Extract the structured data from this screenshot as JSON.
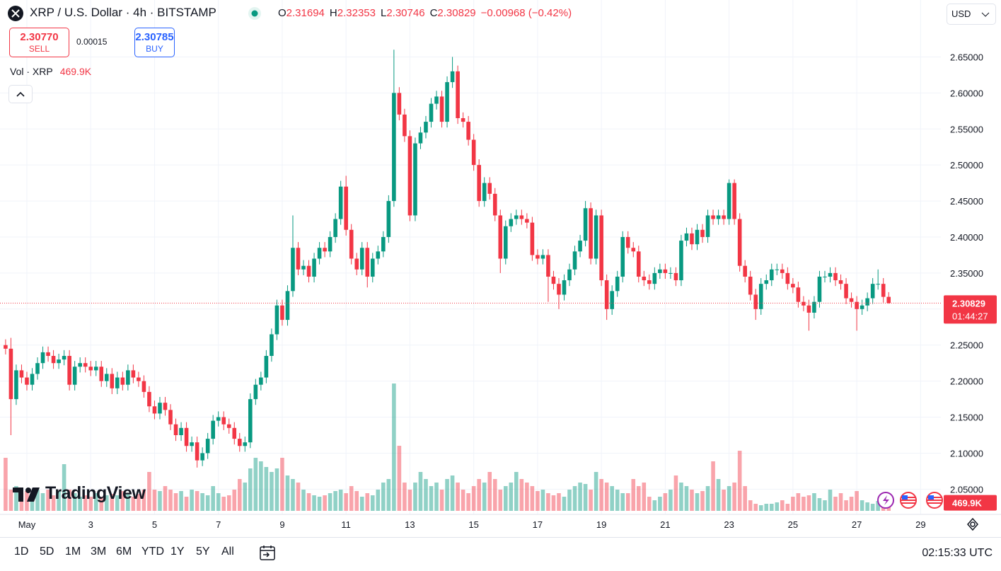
{
  "header": {
    "symbol": "XRP / U.S. Dollar · 4h · BITSTAMP",
    "o_label": "O",
    "h_label": "H",
    "l_label": "L",
    "c_label": "C",
    "change": "−0.00968 (−0.42%)",
    "sell_price": "2.30770",
    "sell_label": "SELL",
    "spread": "0.00015",
    "buy_price": "2.30785",
    "buy_label": "BUY",
    "currency": "USD",
    "countdown": "01:44:27"
  },
  "branding": "TradingView",
  "footer": {
    "ranges": [
      "1D",
      "5D",
      "1M",
      "3M",
      "6M",
      "YTD",
      "1Y",
      "5Y",
      "All"
    ],
    "clock": "02:15:33 UTC"
  },
  "chart_data": {
    "type": "candlestick",
    "up_color": "#089981",
    "down_color": "#f23645",
    "grid": true,
    "ylim": [
      2.015,
      2.729
    ],
    "yticks": [
      {
        "value": 2.05,
        "label": "2.05000"
      },
      {
        "value": 2.1,
        "label": "2.10000"
      },
      {
        "value": 2.15,
        "label": "2.15000"
      },
      {
        "value": 2.2,
        "label": "2.20000"
      },
      {
        "value": 2.25,
        "label": "2.25000"
      },
      {
        "value": 2.3,
        "label": "2.30000"
      },
      {
        "value": 2.35,
        "label": "2.35000"
      },
      {
        "value": 2.4,
        "label": "2.40000"
      },
      {
        "value": 2.45,
        "label": "2.45000"
      },
      {
        "value": 2.5,
        "label": "2.50000"
      },
      {
        "value": 2.55,
        "label": "2.55000"
      },
      {
        "value": 2.6,
        "label": "2.60000"
      },
      {
        "value": 2.65,
        "label": "2.65000"
      }
    ],
    "categories": [
      null,
      null,
      null,
      null,
      "May",
      null,
      null,
      null,
      null,
      null,
      null,
      null,
      null,
      null,
      null,
      null,
      "3",
      null,
      null,
      null,
      null,
      null,
      null,
      null,
      null,
      null,
      null,
      null,
      "5",
      null,
      null,
      null,
      null,
      null,
      null,
      null,
      null,
      null,
      null,
      null,
      "7",
      null,
      null,
      null,
      null,
      null,
      null,
      null,
      null,
      null,
      null,
      null,
      "9",
      null,
      null,
      null,
      null,
      null,
      null,
      null,
      null,
      null,
      null,
      null,
      "11",
      null,
      null,
      null,
      null,
      null,
      null,
      null,
      null,
      null,
      null,
      null,
      "13",
      null,
      null,
      null,
      null,
      null,
      null,
      null,
      null,
      null,
      null,
      null,
      "15",
      null,
      null,
      null,
      null,
      null,
      null,
      null,
      null,
      null,
      null,
      null,
      "17",
      null,
      null,
      null,
      null,
      null,
      null,
      null,
      null,
      null,
      null,
      null,
      "19",
      null,
      null,
      null,
      null,
      null,
      null,
      null,
      null,
      null,
      null,
      null,
      "21",
      null,
      null,
      null,
      null,
      null,
      null,
      null,
      null,
      null,
      null,
      null,
      "23",
      null,
      null,
      null,
      null,
      null,
      null,
      null,
      null,
      null,
      null,
      null,
      "25",
      null,
      null,
      null,
      null,
      null,
      null,
      null,
      null,
      null,
      null,
      null,
      "27",
      null,
      null,
      null,
      null,
      null,
      null,
      null,
      null,
      null,
      null,
      null,
      "29",
      null,
      null,
      null
    ],
    "open": [
      2.25,
      2.245,
      2.175,
      2.215,
      2.205,
      2.195,
      2.21,
      2.225,
      2.24,
      2.235,
      2.225,
      2.23,
      2.235,
      2.195,
      2.22,
      2.225,
      2.22,
      2.215,
      2.22,
      2.2,
      2.21,
      2.19,
      2.205,
      2.195,
      2.215,
      2.205,
      2.2,
      2.185,
      2.165,
      2.155,
      2.17,
      2.16,
      2.14,
      2.125,
      2.135,
      2.11,
      2.115,
      2.09,
      2.1,
      2.12,
      2.145,
      2.15,
      2.14,
      2.135,
      2.12,
      2.11,
      2.115,
      2.175,
      2.195,
      2.205,
      2.235,
      2.265,
      2.305,
      2.285,
      2.325,
      2.385,
      2.355,
      2.36,
      2.345,
      2.37,
      2.385,
      2.38,
      2.4,
      2.425,
      2.47,
      2.41,
      2.37,
      2.355,
      2.385,
      2.345,
      2.37,
      2.38,
      2.4,
      2.45,
      2.6,
      2.57,
      2.54,
      2.43,
      2.53,
      2.545,
      2.56,
      2.585,
      2.595,
      2.56,
      2.615,
      2.63,
      2.565,
      2.56,
      2.535,
      2.5,
      2.45,
      2.475,
      2.46,
      2.43,
      2.37,
      2.415,
      2.425,
      2.43,
      2.425,
      2.42,
      2.375,
      2.37,
      2.375,
      2.345,
      2.335,
      2.32,
      2.34,
      2.355,
      2.38,
      2.395,
      2.44,
      2.37,
      2.43,
      2.34,
      2.3,
      2.325,
      2.345,
      2.4,
      2.385,
      2.38,
      2.345,
      2.34,
      2.335,
      2.35,
      2.355,
      2.35,
      2.35,
      2.34,
      2.395,
      2.405,
      2.39,
      2.41,
      2.4,
      2.43,
      2.425,
      2.43,
      2.425,
      2.475,
      2.425,
      2.36,
      2.345,
      2.32,
      2.3,
      2.335,
      2.34,
      2.355,
      2.355,
      2.35,
      2.335,
      2.33,
      2.31,
      2.305,
      2.295,
      2.31,
      2.345,
      2.345,
      2.35,
      2.34,
      2.335,
      2.315,
      2.31,
      2.3,
      2.305,
      2.315,
      2.335,
      2.335,
      2.31694,
      null,
      null,
      null,
      null,
      null,
      null,
      null,
      null,
      null
    ],
    "high": [
      2.258,
      2.26,
      2.223,
      2.223,
      2.213,
      2.218,
      2.233,
      2.248,
      2.248,
      2.243,
      2.238,
      2.243,
      2.243,
      2.228,
      2.233,
      2.233,
      2.228,
      2.228,
      2.228,
      2.218,
      2.218,
      2.213,
      2.213,
      2.223,
      2.223,
      2.213,
      2.208,
      2.193,
      2.173,
      2.178,
      2.178,
      2.168,
      2.148,
      2.143,
      2.143,
      2.123,
      2.123,
      2.108,
      2.128,
      2.153,
      2.158,
      2.158,
      2.148,
      2.143,
      2.128,
      2.123,
      2.183,
      2.203,
      2.213,
      2.243,
      2.273,
      2.313,
      2.313,
      2.333,
      2.43,
      2.393,
      2.368,
      2.368,
      2.378,
      2.393,
      2.393,
      2.408,
      2.433,
      2.478,
      2.485,
      2.418,
      2.378,
      2.393,
      2.393,
      2.378,
      2.388,
      2.408,
      2.458,
      2.66,
      2.608,
      2.578,
      2.548,
      2.538,
      2.553,
      2.568,
      2.593,
      2.603,
      2.603,
      2.623,
      2.65,
      2.638,
      2.573,
      2.568,
      2.543,
      2.508,
      2.483,
      2.483,
      2.468,
      2.438,
      2.423,
      2.433,
      2.438,
      2.438,
      2.433,
      2.428,
      2.383,
      2.383,
      2.383,
      2.353,
      2.343,
      2.348,
      2.363,
      2.388,
      2.403,
      2.45,
      2.448,
      2.438,
      2.438,
      2.348,
      2.333,
      2.353,
      2.408,
      2.408,
      2.393,
      2.388,
      2.353,
      2.348,
      2.358,
      2.363,
      2.363,
      2.358,
      2.358,
      2.403,
      2.413,
      2.413,
      2.418,
      2.418,
      2.438,
      2.438,
      2.438,
      2.438,
      2.48,
      2.48,
      2.433,
      2.368,
      2.353,
      2.328,
      2.343,
      2.348,
      2.363,
      2.363,
      2.363,
      2.358,
      2.343,
      2.338,
      2.318,
      2.313,
      2.318,
      2.353,
      2.353,
      2.358,
      2.358,
      2.348,
      2.343,
      2.323,
      2.318,
      2.313,
      2.323,
      2.343,
      2.355,
      2.343,
      2.32353,
      null,
      null,
      null,
      null,
      null,
      null,
      null,
      null,
      null
    ],
    "low": [
      2.237,
      2.125,
      2.167,
      2.197,
      2.187,
      2.187,
      2.202,
      2.217,
      2.227,
      2.217,
      2.217,
      2.222,
      2.187,
      2.187,
      2.212,
      2.212,
      2.207,
      2.207,
      2.192,
      2.192,
      2.182,
      2.182,
      2.187,
      2.187,
      2.197,
      2.192,
      2.177,
      2.157,
      2.147,
      2.147,
      2.152,
      2.132,
      2.117,
      2.117,
      2.102,
      2.102,
      2.08,
      2.082,
      2.092,
      2.112,
      2.137,
      2.132,
      2.127,
      2.112,
      2.102,
      2.102,
      2.107,
      2.167,
      2.187,
      2.197,
      2.227,
      2.257,
      2.277,
      2.277,
      2.317,
      2.347,
      2.347,
      2.337,
      2.337,
      2.362,
      2.372,
      2.372,
      2.392,
      2.417,
      2.402,
      2.362,
      2.347,
      2.347,
      2.33,
      2.337,
      2.362,
      2.372,
      2.392,
      2.442,
      2.562,
      2.532,
      2.422,
      2.422,
      2.522,
      2.537,
      2.552,
      2.577,
      2.552,
      2.552,
      2.607,
      2.557,
      2.552,
      2.527,
      2.492,
      2.442,
      2.442,
      2.452,
      2.422,
      2.35,
      2.362,
      2.407,
      2.417,
      2.417,
      2.412,
      2.367,
      2.362,
      2.362,
      2.31,
      2.327,
      2.3,
      2.312,
      2.332,
      2.347,
      2.372,
      2.387,
      2.362,
      2.362,
      2.332,
      2.285,
      2.292,
      2.317,
      2.337,
      2.377,
      2.372,
      2.337,
      2.332,
      2.327,
      2.327,
      2.342,
      2.342,
      2.342,
      2.332,
      2.332,
      2.387,
      2.382,
      2.382,
      2.392,
      2.392,
      2.417,
      2.417,
      2.417,
      2.417,
      2.417,
      2.352,
      2.337,
      2.312,
      2.285,
      2.292,
      2.327,
      2.332,
      2.347,
      2.342,
      2.327,
      2.322,
      2.302,
      2.297,
      2.27,
      2.287,
      2.302,
      2.337,
      2.337,
      2.332,
      2.327,
      2.307,
      2.302,
      2.27,
      2.292,
      2.297,
      2.307,
      2.327,
      2.309,
      2.30746,
      null,
      null,
      null,
      null,
      null,
      null,
      null,
      null,
      null
    ],
    "close": [
      2.245,
      2.175,
      2.215,
      2.205,
      2.195,
      2.21,
      2.225,
      2.24,
      2.235,
      2.225,
      2.23,
      2.235,
      2.195,
      2.22,
      2.225,
      2.22,
      2.215,
      2.22,
      2.2,
      2.21,
      2.19,
      2.205,
      2.195,
      2.215,
      2.205,
      2.2,
      2.185,
      2.165,
      2.155,
      2.17,
      2.16,
      2.14,
      2.125,
      2.135,
      2.11,
      2.115,
      2.09,
      2.1,
      2.12,
      2.145,
      2.15,
      2.14,
      2.135,
      2.12,
      2.11,
      2.115,
      2.175,
      2.195,
      2.205,
      2.235,
      2.265,
      2.305,
      2.285,
      2.325,
      2.385,
      2.355,
      2.36,
      2.345,
      2.37,
      2.385,
      2.38,
      2.4,
      2.425,
      2.47,
      2.41,
      2.37,
      2.355,
      2.385,
      2.345,
      2.37,
      2.38,
      2.4,
      2.45,
      2.6,
      2.57,
      2.54,
      2.43,
      2.53,
      2.545,
      2.56,
      2.585,
      2.595,
      2.56,
      2.615,
      2.63,
      2.565,
      2.56,
      2.535,
      2.5,
      2.45,
      2.475,
      2.46,
      2.43,
      2.37,
      2.415,
      2.425,
      2.43,
      2.425,
      2.42,
      2.375,
      2.37,
      2.375,
      2.345,
      2.335,
      2.32,
      2.34,
      2.355,
      2.38,
      2.395,
      2.44,
      2.37,
      2.43,
      2.34,
      2.3,
      2.325,
      2.345,
      2.4,
      2.385,
      2.38,
      2.345,
      2.34,
      2.335,
      2.35,
      2.355,
      2.35,
      2.35,
      2.34,
      2.395,
      2.405,
      2.39,
      2.41,
      2.4,
      2.43,
      2.425,
      2.43,
      2.425,
      2.475,
      2.425,
      2.36,
      2.345,
      2.32,
      2.3,
      2.335,
      2.34,
      2.355,
      2.355,
      2.35,
      2.335,
      2.33,
      2.31,
      2.305,
      2.295,
      2.31,
      2.345,
      2.345,
      2.35,
      2.34,
      2.335,
      2.315,
      2.31,
      2.3,
      2.305,
      2.315,
      2.335,
      2.335,
      2.31694,
      2.30829,
      null,
      null,
      null,
      null,
      null,
      null,
      null,
      null,
      null
    ],
    "volume": {
      "name": "Vol · XRP",
      "last_label": "469.9K",
      "values": [
        3750000,
        1500000,
        1750000,
        1250000,
        1400000,
        1200000,
        1500000,
        1250000,
        1500000,
        1100000,
        1400000,
        3300000,
        1500000,
        1250000,
        1000000,
        1100000,
        1000000,
        1250000,
        1000000,
        1100000,
        1200000,
        1100000,
        1400000,
        1250000,
        1000000,
        1200000,
        1500000,
        2750000,
        1500000,
        1400000,
        1750000,
        1500000,
        1250000,
        1400000,
        1000000,
        1500000,
        1400000,
        1250000,
        1100000,
        1750000,
        1250000,
        1000000,
        1100000,
        1500000,
        2250000,
        2000000,
        3000000,
        3750000,
        3500000,
        3100000,
        2750000,
        3000000,
        3750000,
        2500000,
        2250000,
        2000000,
        1500000,
        1250000,
        1100000,
        1000000,
        1100000,
        1250000,
        1400000,
        1500000,
        1250000,
        1750000,
        1400000,
        1000000,
        1250000,
        1100000,
        1500000,
        2000000,
        2250000,
        9000000,
        4600000,
        2000000,
        1500000,
        2000000,
        2750000,
        2250000,
        1750000,
        2000000,
        1500000,
        2250000,
        2500000,
        2000000,
        1500000,
        1250000,
        1750000,
        2250000,
        2000000,
        2750000,
        2250000,
        1500000,
        1750000,
        2000000,
        2750000,
        2250000,
        2000000,
        1750000,
        1400000,
        1500000,
        1250000,
        1100000,
        1250000,
        1000000,
        1500000,
        1750000,
        2000000,
        1900000,
        1500000,
        2750000,
        2250000,
        2000000,
        1750000,
        1500000,
        1250000,
        1250000,
        2250000,
        1750000,
        2000000,
        1000000,
        750000,
        1000000,
        1250000,
        1500000,
        2500000,
        2000000,
        1750000,
        1500000,
        1250000,
        1400000,
        1750000,
        3500000,
        2250000,
        1500000,
        1750000,
        2000000,
        4250000,
        1750000,
        750000,
        500000,
        400000,
        500000,
        500000,
        600000,
        750000,
        500000,
        1000000,
        1250000,
        1000000,
        1100000,
        1250000,
        900000,
        750000,
        1500000,
        1000000,
        1250000,
        750000,
        1000000,
        1400000,
        750000,
        600000,
        500000,
        700000,
        600000,
        469900,
        null,
        null,
        null,
        null,
        null,
        null,
        null,
        null,
        null
      ]
    }
  }
}
